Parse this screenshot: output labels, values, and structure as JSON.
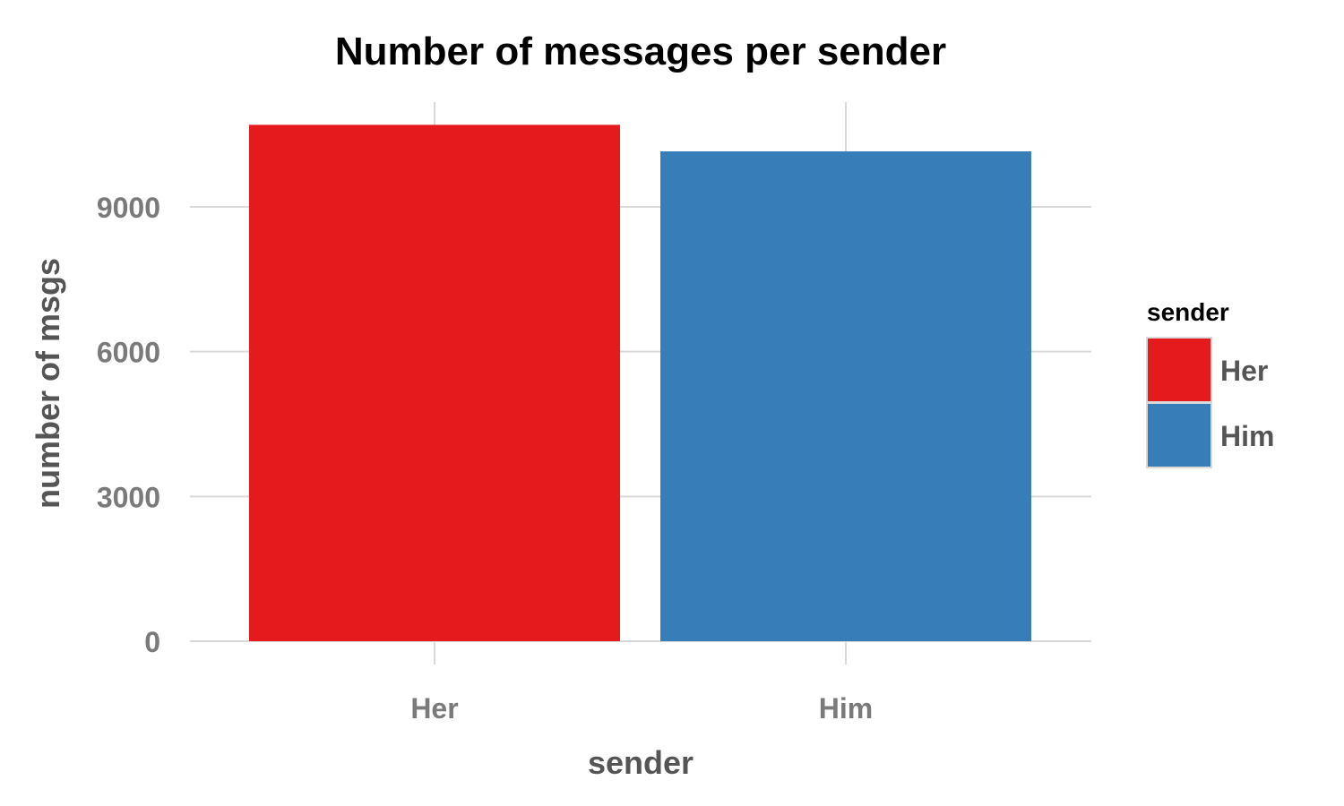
{
  "chart_data": {
    "type": "bar",
    "title": "Number of messages per sender",
    "xlabel": "sender",
    "ylabel": "number of msgs",
    "categories": [
      "Her",
      "Him"
    ],
    "values": [
      10700,
      10150
    ],
    "colors": [
      "#e41a1c",
      "#377eb8"
    ],
    "ylim": [
      0,
      11000
    ],
    "yticks": [
      0,
      3000,
      6000,
      9000
    ],
    "ytick_labels": [
      "0",
      "3000",
      "6000",
      "9000"
    ],
    "grid": true,
    "legend": {
      "title": "sender",
      "placement": "right",
      "entries": [
        "Her",
        "Him"
      ]
    }
  }
}
